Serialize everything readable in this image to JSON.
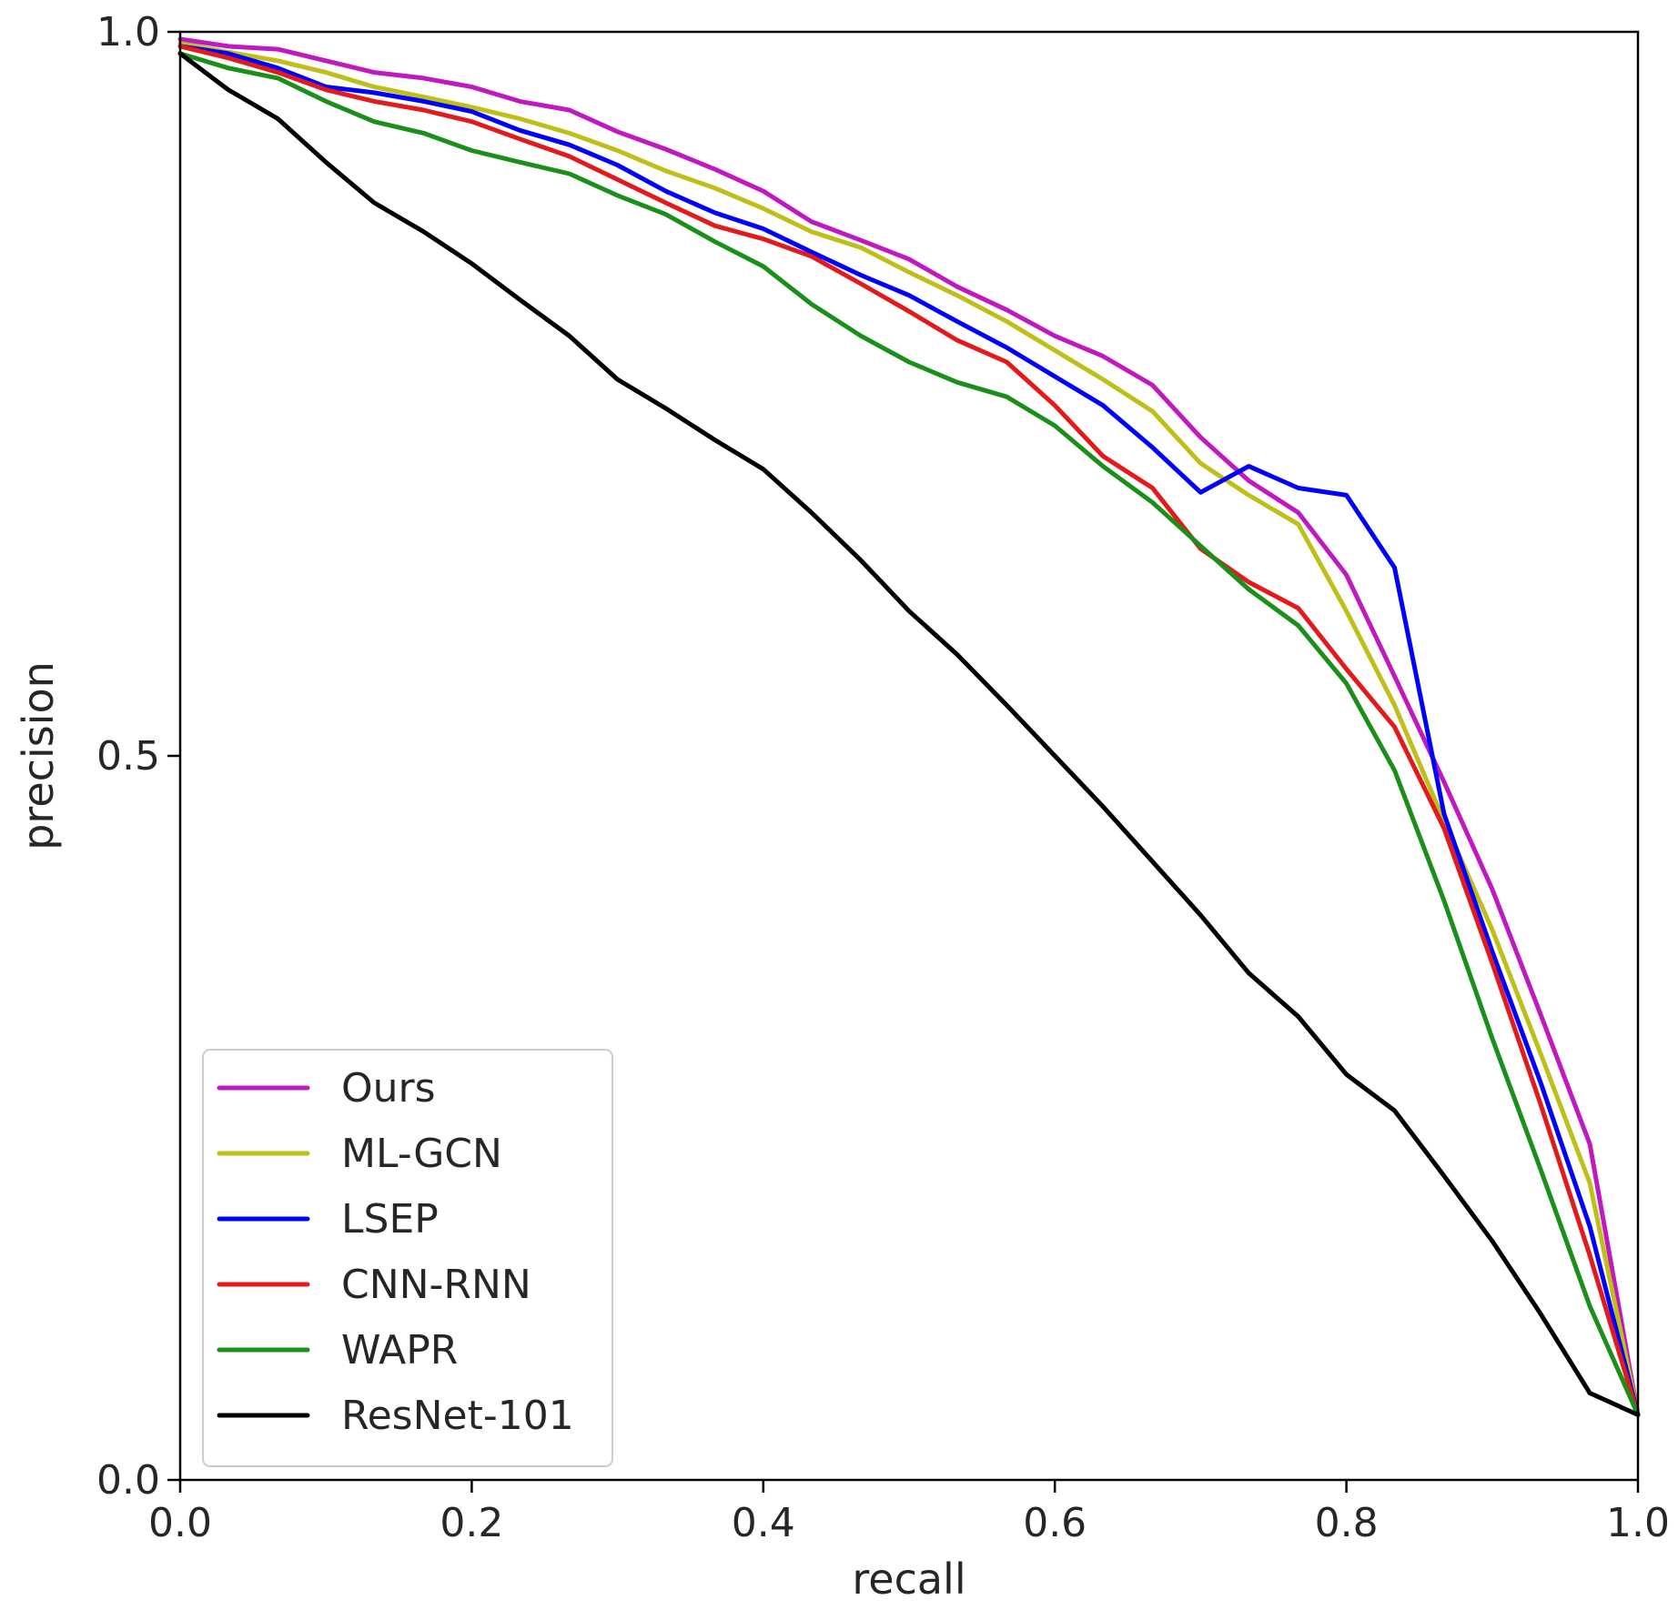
{
  "chart_data": {
    "type": "line",
    "title": "",
    "xlabel": "recall",
    "ylabel": "precision",
    "xlim": [
      0.0,
      1.0
    ],
    "ylim": [
      0.0,
      1.0
    ],
    "xticks": [
      "0.0",
      "0.2",
      "0.4",
      "0.6",
      "0.8",
      "1.0"
    ],
    "xtick_values": [
      0.0,
      0.2,
      0.4,
      0.6,
      0.8,
      1.0
    ],
    "yticks": [
      "0.0",
      "0.5",
      "1.0"
    ],
    "ytick_values": [
      0.0,
      0.5,
      1.0
    ],
    "grid": false,
    "legend_position": "lower-left",
    "series": [
      {
        "name": "Ours",
        "color": "#bf19bf",
        "x": [
          0,
          0.033,
          0.067,
          0.1,
          0.133,
          0.167,
          0.2,
          0.233,
          0.267,
          0.3,
          0.333,
          0.367,
          0.4,
          0.433,
          0.467,
          0.5,
          0.533,
          0.567,
          0.6,
          0.633,
          0.667,
          0.7,
          0.733,
          0.767,
          0.8,
          0.833,
          0.867,
          0.9,
          0.933,
          0.967,
          1.0
        ],
        "y": [
          0.995,
          0.99,
          0.988,
          0.98,
          0.972,
          0.968,
          0.962,
          0.952,
          0.946,
          0.931,
          0.919,
          0.905,
          0.89,
          0.869,
          0.856,
          0.843,
          0.824,
          0.808,
          0.79,
          0.776,
          0.756,
          0.72,
          0.69,
          0.668,
          0.625,
          0.555,
          0.482,
          0.408,
          0.322,
          0.232,
          0.045
        ]
      },
      {
        "name": "ML-GCN",
        "color": "#bfbf19",
        "x": [
          0,
          0.033,
          0.067,
          0.1,
          0.133,
          0.167,
          0.2,
          0.233,
          0.267,
          0.3,
          0.333,
          0.367,
          0.4,
          0.433,
          0.467,
          0.5,
          0.533,
          0.567,
          0.6,
          0.633,
          0.667,
          0.7,
          0.733,
          0.767,
          0.8,
          0.833,
          0.867,
          0.9,
          0.933,
          0.967,
          1.0
        ],
        "y": [
          0.992,
          0.986,
          0.98,
          0.972,
          0.962,
          0.955,
          0.948,
          0.94,
          0.93,
          0.918,
          0.904,
          0.892,
          0.878,
          0.862,
          0.851,
          0.834,
          0.818,
          0.8,
          0.78,
          0.76,
          0.738,
          0.702,
          0.68,
          0.66,
          0.6,
          0.535,
          0.455,
          0.38,
          0.295,
          0.205,
          0.045
        ]
      },
      {
        "name": "LSEP",
        "color": "#0000ff",
        "x": [
          0,
          0.033,
          0.067,
          0.1,
          0.133,
          0.167,
          0.2,
          0.233,
          0.267,
          0.3,
          0.333,
          0.367,
          0.4,
          0.433,
          0.467,
          0.5,
          0.533,
          0.567,
          0.6,
          0.633,
          0.667,
          0.7,
          0.733,
          0.767,
          0.8,
          0.833,
          0.867,
          0.9,
          0.933,
          0.967,
          1.0
        ],
        "y": [
          0.99,
          0.985,
          0.975,
          0.962,
          0.958,
          0.952,
          0.945,
          0.932,
          0.922,
          0.908,
          0.89,
          0.875,
          0.864,
          0.848,
          0.832,
          0.818,
          0.8,
          0.782,
          0.762,
          0.742,
          0.713,
          0.682,
          0.7,
          0.685,
          0.68,
          0.63,
          0.46,
          0.365,
          0.275,
          0.175,
          0.045
        ]
      },
      {
        "name": "CNN-RNN",
        "color": "#e31a1c",
        "x": [
          0,
          0.033,
          0.067,
          0.1,
          0.133,
          0.167,
          0.2,
          0.233,
          0.267,
          0.3,
          0.333,
          0.367,
          0.4,
          0.433,
          0.467,
          0.5,
          0.533,
          0.567,
          0.6,
          0.633,
          0.667,
          0.7,
          0.733,
          0.767,
          0.8,
          0.833,
          0.867,
          0.9,
          0.933,
          0.967,
          1.0
        ],
        "y": [
          0.99,
          0.982,
          0.972,
          0.96,
          0.952,
          0.946,
          0.938,
          0.926,
          0.914,
          0.898,
          0.882,
          0.866,
          0.857,
          0.845,
          0.826,
          0.807,
          0.787,
          0.772,
          0.742,
          0.707,
          0.685,
          0.643,
          0.62,
          0.602,
          0.56,
          0.52,
          0.45,
          0.357,
          0.26,
          0.155,
          0.045
        ]
      },
      {
        "name": "WAPR",
        "color": "#1a8f1a",
        "x": [
          0,
          0.033,
          0.067,
          0.1,
          0.133,
          0.167,
          0.2,
          0.233,
          0.267,
          0.3,
          0.333,
          0.367,
          0.4,
          0.433,
          0.467,
          0.5,
          0.533,
          0.567,
          0.6,
          0.633,
          0.667,
          0.7,
          0.733,
          0.767,
          0.8,
          0.833,
          0.867,
          0.9,
          0.933,
          0.967,
          1.0
        ],
        "y": [
          0.985,
          0.975,
          0.968,
          0.952,
          0.938,
          0.93,
          0.918,
          0.91,
          0.902,
          0.887,
          0.874,
          0.855,
          0.838,
          0.812,
          0.79,
          0.772,
          0.758,
          0.748,
          0.728,
          0.7,
          0.675,
          0.645,
          0.615,
          0.59,
          0.55,
          0.49,
          0.4,
          0.305,
          0.215,
          0.12,
          0.045
        ]
      },
      {
        "name": "ResNet-101",
        "color": "#000000",
        "x": [
          0,
          0.033,
          0.067,
          0.1,
          0.133,
          0.167,
          0.2,
          0.233,
          0.267,
          0.3,
          0.333,
          0.367,
          0.4,
          0.433,
          0.467,
          0.5,
          0.533,
          0.567,
          0.6,
          0.633,
          0.667,
          0.7,
          0.733,
          0.767,
          0.8,
          0.833,
          0.867,
          0.9,
          0.933,
          0.967,
          1.0
        ],
        "y": [
          0.985,
          0.96,
          0.94,
          0.91,
          0.882,
          0.862,
          0.84,
          0.815,
          0.79,
          0.76,
          0.74,
          0.718,
          0.698,
          0.668,
          0.635,
          0.6,
          0.57,
          0.535,
          0.5,
          0.465,
          0.427,
          0.39,
          0.35,
          0.32,
          0.28,
          0.255,
          0.21,
          0.165,
          0.115,
          0.06,
          0.045
        ]
      }
    ]
  }
}
